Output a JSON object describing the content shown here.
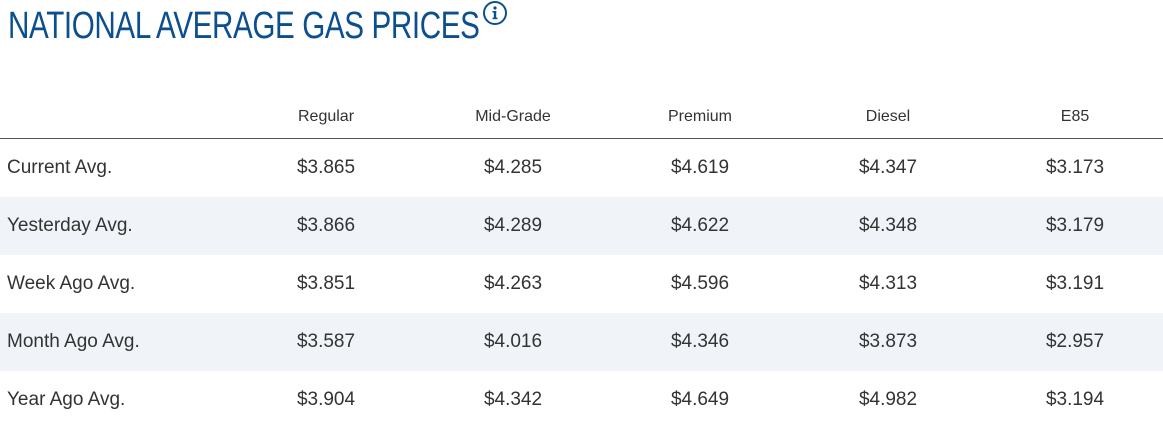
{
  "header": {
    "title": "NATIONAL AVERAGE GAS PRICES",
    "info_icon": "info-circle-icon",
    "title_color": "#0b4f8f"
  },
  "table": {
    "columns": [
      "Regular",
      "Mid-Grade",
      "Premium",
      "Diesel",
      "E85"
    ],
    "rows": [
      {
        "label": "Current Avg.",
        "values": [
          "$3.865",
          "$4.285",
          "$4.619",
          "$4.347",
          "$3.173"
        ]
      },
      {
        "label": "Yesterday Avg.",
        "values": [
          "$3.866",
          "$4.289",
          "$4.622",
          "$4.348",
          "$3.179"
        ]
      },
      {
        "label": "Week Ago Avg.",
        "values": [
          "$3.851",
          "$4.263",
          "$4.596",
          "$4.313",
          "$3.191"
        ]
      },
      {
        "label": "Month Ago Avg.",
        "values": [
          "$3.587",
          "$4.016",
          "$4.346",
          "$3.873",
          "$2.957"
        ]
      },
      {
        "label": "Year Ago Avg.",
        "values": [
          "$3.904",
          "$4.342",
          "$4.649",
          "$4.982",
          "$3.194"
        ]
      }
    ],
    "alt_row_color": "#f0f4f9"
  }
}
